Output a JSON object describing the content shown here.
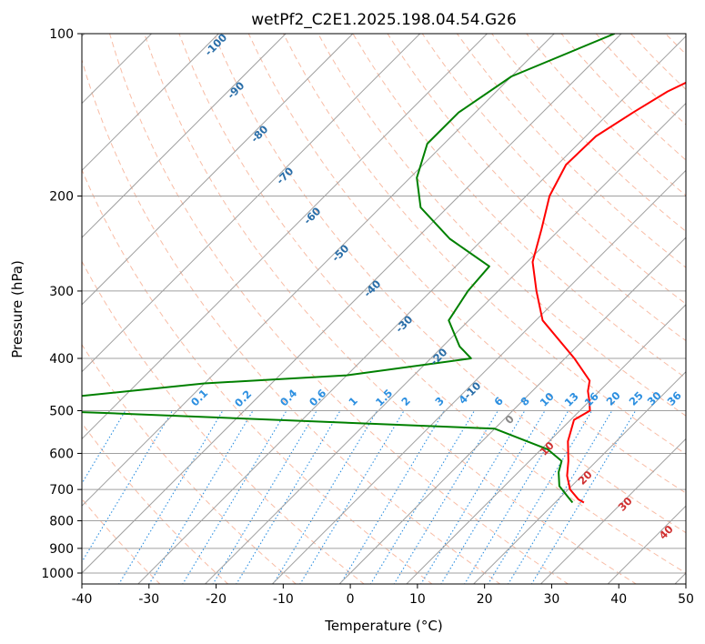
{
  "chart_data": {
    "type": "line",
    "title": "wetPf2_C2E1.2025.198.04.54.G26",
    "xlabel": "Temperature (°C)",
    "ylabel": "Pressure (hPa)",
    "xlim": [
      -40,
      50
    ],
    "ylim": [
      1050,
      100
    ],
    "y_scale": "log",
    "x_ticks": [
      -40,
      -30,
      -20,
      -10,
      0,
      10,
      20,
      30,
      40,
      50
    ],
    "y_ticks": [
      100,
      200,
      300,
      400,
      500,
      600,
      700,
      800,
      900,
      1000
    ],
    "grid": true,
    "series": [
      {
        "color": "#ff0000",
        "pressure": [
          100,
          115,
          128,
          140,
          155,
          175,
          200,
          230,
          265,
          300,
          340,
          400,
          440,
          460,
          480,
          500,
          520,
          570,
          620,
          660,
          700,
          730,
          740
        ],
        "temperature": [
          -12.5,
          -20.5,
          -24.5,
          -26.5,
          -28.5,
          -28.7,
          -26.5,
          -22.8,
          -19.2,
          -14.3,
          -9.0,
          1.4,
          7.0,
          8.3,
          10.0,
          11.5,
          10.5,
          12.8,
          15.8,
          17.8,
          20.3,
          23.0,
          24.3
        ]
      },
      {
        "color": "#008000",
        "pressure": [
          100,
          120,
          140,
          160,
          185,
          210,
          240,
          270,
          300,
          340,
          380,
          400,
          430,
          445,
          475,
          500,
          505,
          540,
          590,
          620,
          650,
          690,
          725,
          740
        ],
        "temperature": [
          -41,
          -50,
          -52.5,
          -52.5,
          -49,
          -44,
          -35,
          -25,
          -24.5,
          -23,
          -17.5,
          -14,
          -30,
          -50,
          -70,
          -71,
          -60,
          0,
          11,
          14.8,
          16,
          18.2,
          21.3,
          22.6
        ]
      }
    ],
    "mixing_ratio_labels": [
      "0.1",
      "0.2",
      "0.4",
      "0.6",
      "1",
      "1.5",
      "2",
      "3",
      "4",
      "6",
      "8",
      "10",
      "13",
      "16",
      "20",
      "25",
      "30",
      "36"
    ],
    "dry_adiabat_labels": [
      "-100",
      "-90",
      "-80",
      "-70",
      "-60",
      "-50",
      "-40",
      "-30",
      "-20",
      "-10",
      "0",
      "10",
      "20",
      "30",
      "40"
    ],
    "annotation_colors": {
      "mixing_ratio": "#2c8fe0",
      "cold_adiabat": "#2a6ea8",
      "zero_adiabat": "#888888",
      "warm_adiabat": "#d03030"
    }
  }
}
